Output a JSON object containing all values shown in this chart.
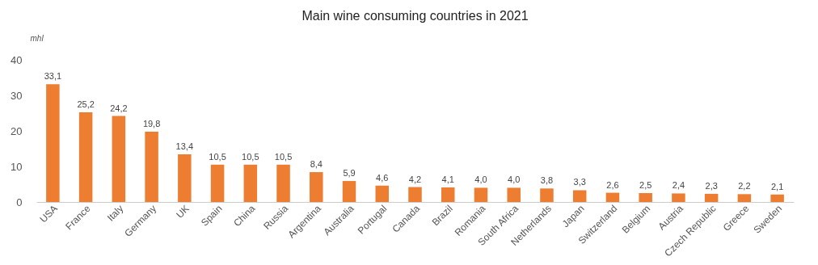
{
  "chart_data": {
    "type": "bar",
    "title": "Main wine consuming countries in 2021",
    "ylabel": "mhl",
    "categories": [
      "USA",
      "France",
      "Italy",
      "Germany",
      "UK",
      "Spain",
      "China",
      "Russia",
      "Argentina",
      "Australia",
      "Portugal",
      "Canada",
      "Brazil",
      "Romania",
      "South Africa",
      "Netherlands",
      "Japan",
      "Switzerland",
      "Belgium",
      "Austria",
      "Czech Republic",
      "Greece",
      "Sweden"
    ],
    "values": [
      33.1,
      25.2,
      24.2,
      19.8,
      13.4,
      10.5,
      10.5,
      10.5,
      8.4,
      5.9,
      4.6,
      4.2,
      4.1,
      4.0,
      4.0,
      3.8,
      3.3,
      2.6,
      2.5,
      2.4,
      2.3,
      2.2,
      2.1
    ],
    "value_labels": [
      "33,1",
      "25,2",
      "24,2",
      "19,8",
      "13,4",
      "10,5",
      "10,5",
      "10,5",
      "8,4",
      "5,9",
      "4,6",
      "4,2",
      "4,1",
      "4,0",
      "4,0",
      "3,8",
      "3,3",
      "2,6",
      "2,5",
      "2,4",
      "2,3",
      "2,2",
      "2,1"
    ],
    "color": "#ed7d31",
    "ylim": [
      0,
      40
    ],
    "yticks": [
      0,
      10,
      20,
      30,
      40
    ],
    "grid": false
  }
}
